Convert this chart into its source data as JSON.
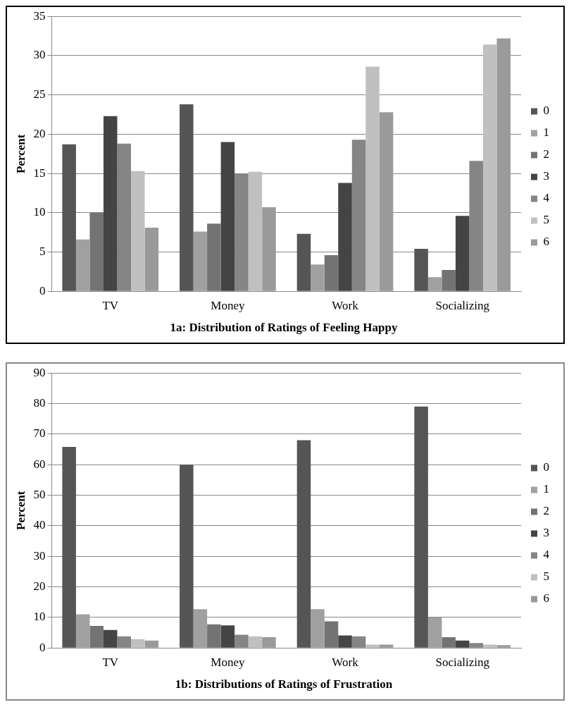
{
  "chart_data": [
    {
      "type": "bar",
      "title": "1a: Distribution of Ratings of Feeling Happy",
      "ylabel": "Percent",
      "categories": [
        "TV",
        "Money",
        "Work",
        "Socializing"
      ],
      "series": [
        {
          "name": "0",
          "color": "#555555",
          "values": [
            18.7,
            23.8,
            7.3,
            5.4
          ]
        },
        {
          "name": "1",
          "color": "#a0a0a0",
          "values": [
            6.6,
            7.6,
            3.4,
            1.8
          ]
        },
        {
          "name": "2",
          "color": "#737373",
          "values": [
            10,
            8.6,
            4.6,
            2.7
          ]
        },
        {
          "name": "3",
          "color": "#444444",
          "values": [
            22.3,
            19,
            13.8,
            9.6
          ]
        },
        {
          "name": "4",
          "color": "#858585",
          "values": [
            18.8,
            15,
            19.3,
            16.6
          ]
        },
        {
          "name": "5",
          "color": "#c0c0c0",
          "values": [
            15.3,
            15.2,
            28.6,
            31.4
          ]
        },
        {
          "name": "6",
          "color": "#9a9a9a",
          "values": [
            8.1,
            10.7,
            22.8,
            32.2
          ]
        }
      ],
      "ylim": [
        0,
        35
      ],
      "yticks": [
        0,
        5,
        10,
        15,
        20,
        25,
        30,
        35
      ],
      "grid": "y",
      "legend": "right"
    },
    {
      "type": "bar",
      "title": "1b: Distributions of Ratings of Frustration",
      "ylabel": "Percent",
      "categories": [
        "TV",
        "Money",
        "Work",
        "Socializing"
      ],
      "series": [
        {
          "name": "0",
          "color": "#555555",
          "values": [
            65.8,
            60,
            68,
            79
          ]
        },
        {
          "name": "1",
          "color": "#a0a0a0",
          "values": [
            11,
            12.7,
            12.7,
            10
          ]
        },
        {
          "name": "2",
          "color": "#737373",
          "values": [
            7.2,
            7.7,
            8.7,
            3.5
          ]
        },
        {
          "name": "3",
          "color": "#444444",
          "values": [
            5.9,
            7.4,
            4.1,
            2.4
          ]
        },
        {
          "name": "4",
          "color": "#858585",
          "values": [
            3.8,
            4.3,
            3.8,
            1.6
          ]
        },
        {
          "name": "5",
          "color": "#c0c0c0",
          "values": [
            2.9,
            3.8,
            1.1,
            1.1
          ]
        },
        {
          "name": "6",
          "color": "#9a9a9a",
          "values": [
            2.4,
            3.5,
            1.1,
            0.9
          ]
        }
      ],
      "ylim": [
        0,
        90
      ],
      "yticks": [
        0,
        10,
        20,
        30,
        40,
        50,
        60,
        70,
        80,
        90
      ],
      "grid": "y",
      "legend": "right"
    }
  ]
}
